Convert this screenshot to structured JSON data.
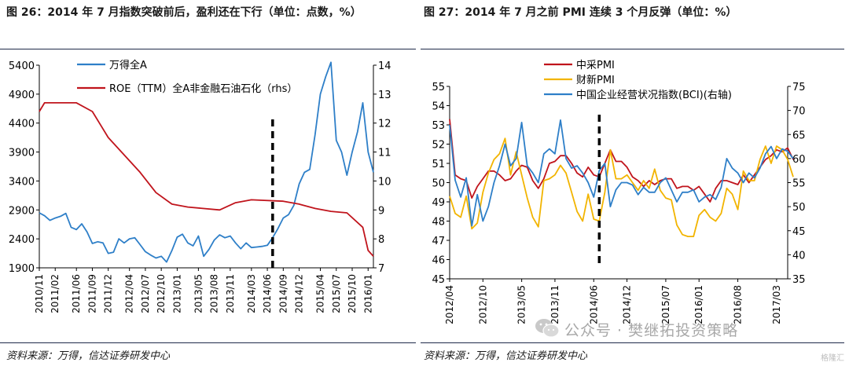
{
  "charts": [
    {
      "title": "图 26：2014 年 7 月指数突破前后，盈利还在下行（单位：点数，%）",
      "source": "资料来源：万得，信达证券研发中心"
    },
    {
      "title": "图 27：2014 年 7 月之前 PMI 连续 3 个月反弹（单位：%）",
      "source": "资料来源：万得，信达证券研发中心"
    }
  ],
  "watermark": {
    "text": "公众号 · 樊继拓投资策略",
    "small": "",
    "corner": "格隆汇"
  },
  "chart_data": [
    {
      "type": "line",
      "title": "图 26：2014 年 7 月指数突破前后，盈利还在下行（单位：点数，%）",
      "xlabel": "",
      "ylabel": "",
      "x_ticks": [
        "2010/11",
        "2011/02",
        "2011/06",
        "2011/09",
        "2011/12",
        "2012/04",
        "2012/07",
        "2012/10",
        "2013/01",
        "2013/05",
        "2013/08",
        "2013/11",
        "2014/03",
        "2014/06",
        "2014/09",
        "2014/12",
        "2015/04",
        "2015/07",
        "2015/10",
        "2016/01"
      ],
      "y_left": {
        "ticks": [
          1900,
          2400,
          2900,
          3400,
          3900,
          4400,
          4900,
          5400
        ],
        "range": [
          1900,
          5400
        ]
      },
      "y_right": {
        "ticks": [
          7,
          8,
          9,
          10,
          11,
          12,
          13,
          14
        ],
        "range": [
          7,
          14
        ]
      },
      "legend": "top-left",
      "x_range": [
        "2010-11",
        "2016-02"
      ],
      "series": [
        {
          "name": "万得全A",
          "axis": "left",
          "color": "#2e7fc8",
          "points": [
            [
              "2010-11",
              2850
            ],
            [
              "2010-12",
              2800
            ],
            [
              "2011-01",
              2720
            ],
            [
              "2011-02",
              2760
            ],
            [
              "2011-03",
              2790
            ],
            [
              "2011-04",
              2840
            ],
            [
              "2011-05",
              2600
            ],
            [
              "2011-06",
              2560
            ],
            [
              "2011-07",
              2660
            ],
            [
              "2011-08",
              2520
            ],
            [
              "2011-09",
              2320
            ],
            [
              "2011-10",
              2350
            ],
            [
              "2011-11",
              2330
            ],
            [
              "2011-12",
              2150
            ],
            [
              "2012-01",
              2170
            ],
            [
              "2012-02",
              2400
            ],
            [
              "2012-03",
              2330
            ],
            [
              "2012-04",
              2400
            ],
            [
              "2012-05",
              2420
            ],
            [
              "2012-06",
              2300
            ],
            [
              "2012-07",
              2180
            ],
            [
              "2012-08",
              2120
            ],
            [
              "2012-09",
              2070
            ],
            [
              "2012-10",
              2100
            ],
            [
              "2012-11",
              2000
            ],
            [
              "2012-12",
              2200
            ],
            [
              "2013-01",
              2430
            ],
            [
              "2013-02",
              2480
            ],
            [
              "2013-03",
              2330
            ],
            [
              "2013-04",
              2280
            ],
            [
              "2013-05",
              2450
            ],
            [
              "2013-06",
              2100
            ],
            [
              "2013-07",
              2220
            ],
            [
              "2013-08",
              2380
            ],
            [
              "2013-09",
              2470
            ],
            [
              "2013-10",
              2420
            ],
            [
              "2013-11",
              2450
            ],
            [
              "2013-12",
              2330
            ],
            [
              "2014-01",
              2230
            ],
            [
              "2014-02",
              2330
            ],
            [
              "2014-03",
              2250
            ],
            [
              "2014-04",
              2260
            ],
            [
              "2014-05",
              2270
            ],
            [
              "2014-06",
              2290
            ],
            [
              "2014-07",
              2420
            ],
            [
              "2014-08",
              2580
            ],
            [
              "2014-09",
              2760
            ],
            [
              "2014-10",
              2820
            ],
            [
              "2014-11",
              2980
            ],
            [
              "2014-12",
              3350
            ],
            [
              "2015-01",
              3550
            ],
            [
              "2015-02",
              3600
            ],
            [
              "2015-03",
              4200
            ],
            [
              "2015-04",
              4900
            ],
            [
              "2015-05",
              5200
            ],
            [
              "2015-06",
              5450
            ],
            [
              "2015-07",
              4100
            ],
            [
              "2015-08",
              3900
            ],
            [
              "2015-09",
              3500
            ],
            [
              "2015-10",
              3900
            ],
            [
              "2015-11",
              4250
            ],
            [
              "2015-12",
              4750
            ],
            [
              "2016-01",
              3900
            ],
            [
              "2016-02",
              3550
            ]
          ]
        },
        {
          "name": "ROE（TTM）全A非金融石油石化（rhs）",
          "axis": "right",
          "color": "#c0141c",
          "points": [
            [
              "2010-11",
              12.4
            ],
            [
              "2010-12",
              12.7
            ],
            [
              "2011-06",
              12.7
            ],
            [
              "2011-09",
              12.4
            ],
            [
              "2011-12",
              11.5
            ],
            [
              "2012-06",
              10.3
            ],
            [
              "2012-09",
              9.6
            ],
            [
              "2012-12",
              9.2
            ],
            [
              "2013-03",
              9.1
            ],
            [
              "2013-09",
              9.0
            ],
            [
              "2013-12",
              9.25
            ],
            [
              "2014-03",
              9.35
            ],
            [
              "2014-09",
              9.3
            ],
            [
              "2014-12",
              9.2
            ],
            [
              "2015-03",
              9.05
            ],
            [
              "2015-06",
              8.95
            ],
            [
              "2015-09",
              8.9
            ],
            [
              "2015-12",
              8.4
            ],
            [
              "2016-01",
              7.6
            ],
            [
              "2016-02",
              7.4
            ]
          ]
        }
      ],
      "annotations": [
        {
          "type": "vertical-dashed-line",
          "x": "2014-07"
        }
      ]
    },
    {
      "type": "line",
      "title": "图 27：2014 年 7 月之前 PMI 连续 3 个月反弹（单位：%）",
      "xlabel": "",
      "ylabel": "",
      "x_ticks": [
        "2012/04",
        "2012/10",
        "2013/05",
        "2013/11",
        "2014/06",
        "2014/12",
        "2015/07",
        "2016/01",
        "2016/08",
        "2017/03"
      ],
      "y_left": {
        "ticks": [
          45,
          46,
          47,
          48,
          49,
          50,
          51,
          52,
          53,
          54,
          55
        ],
        "range": [
          45,
          55
        ]
      },
      "y_right": {
        "ticks": [
          35,
          40,
          45,
          50,
          55,
          60,
          65,
          70,
          75
        ],
        "range": [
          35,
          75
        ]
      },
      "legend": "top-left",
      "x_range": [
        "2012-04",
        "2017-05"
      ],
      "series": [
        {
          "name": "中采PMI",
          "axis": "left",
          "color": "#c0141c",
          "values": [
            53.3,
            50.4,
            50.2,
            50.1,
            49.2,
            49.8,
            50.2,
            50.6,
            50.6,
            50.4,
            50.1,
            50.2,
            50.6,
            50.9,
            50.8,
            50.1,
            49.7,
            50.2,
            51.0,
            51.1,
            51.4,
            51.4,
            51.0,
            50.5,
            50.3,
            50.8,
            50.4,
            50.3,
            51.0,
            51.7,
            51.1,
            51.1,
            50.8,
            50.3,
            50.1,
            49.8,
            50.1,
            49.9,
            50.1,
            50.2,
            50.2,
            49.7,
            49.8,
            49.8,
            49.6,
            49.8,
            49.4,
            49.0,
            49.7,
            50.1,
            50.1,
            50.0,
            49.9,
            50.4,
            50.0,
            50.4,
            50.8,
            51.2,
            51.4,
            51.7,
            51.6,
            51.8,
            51.2
          ],
          "start": "2012-04"
        },
        {
          "name": "财新PMI",
          "axis": "left",
          "color": "#f2b400",
          "values": [
            49.3,
            48.4,
            48.2,
            49.3,
            47.6,
            47.9,
            49.5,
            50.5,
            51.2,
            51.5,
            52.3,
            50.4,
            51.6,
            50.4,
            49.2,
            48.2,
            47.7,
            50.1,
            50.2,
            50.4,
            50.9,
            50.5,
            49.5,
            48.5,
            48.0,
            49.4,
            48.1,
            48.0,
            49.5,
            51.7,
            50.2,
            50.2,
            50.4,
            50.0,
            49.6,
            50.1,
            49.7,
            50.7,
            49.6,
            49.2,
            49.1,
            47.8,
            47.3,
            47.2,
            47.2,
            48.3,
            48.6,
            48.2,
            48.0,
            48.4,
            49.7,
            49.4,
            48.6,
            50.6,
            50.1,
            50.1,
            51.2,
            51.9,
            51.0,
            51.9,
            51.7,
            51.2,
            50.3
          ],
          "start": "2012-04"
        },
        {
          "name": "中国企业经营状况指数(BCI)(右轴)",
          "axis": "right",
          "color": "#2e7fc8",
          "values": [
            67.0,
            55.5,
            52.0,
            56.0,
            46.0,
            52.5,
            47.0,
            50.0,
            55.0,
            58.5,
            63.0,
            58.5,
            60.0,
            67.5,
            58.5,
            57.0,
            55.0,
            61.0,
            62.0,
            61.0,
            68.0,
            60.0,
            58.0,
            58.5,
            57.0,
            55.0,
            52.0,
            57.5,
            59.0,
            50.0,
            53.5,
            55.0,
            55.0,
            54.5,
            52.5,
            54.0,
            53.0,
            53.0,
            55.0,
            56.0,
            53.5,
            51.0,
            53.0,
            53.0,
            53.5,
            51.0,
            52.0,
            52.5,
            51.5,
            54.0,
            60.0,
            58.0,
            57.0,
            55.0,
            57.0,
            56.0,
            58.0,
            61.0,
            62.5,
            60.0,
            62.0,
            61.5,
            60.0
          ],
          "start": "2012-04"
        }
      ],
      "annotations": [
        {
          "type": "vertical-dashed-line",
          "x": "2014-07"
        }
      ]
    }
  ]
}
